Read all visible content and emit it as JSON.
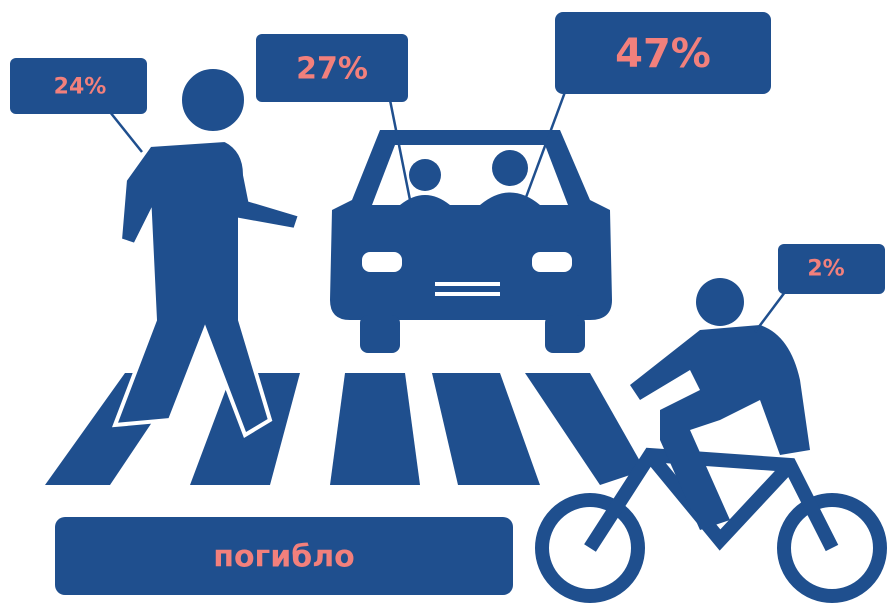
{
  "callouts": [
    {
      "label": "24%"
    },
    {
      "label": "27%"
    },
    {
      "label": "47%"
    },
    {
      "label": "2%"
    }
  ],
  "caption": "погибло"
}
